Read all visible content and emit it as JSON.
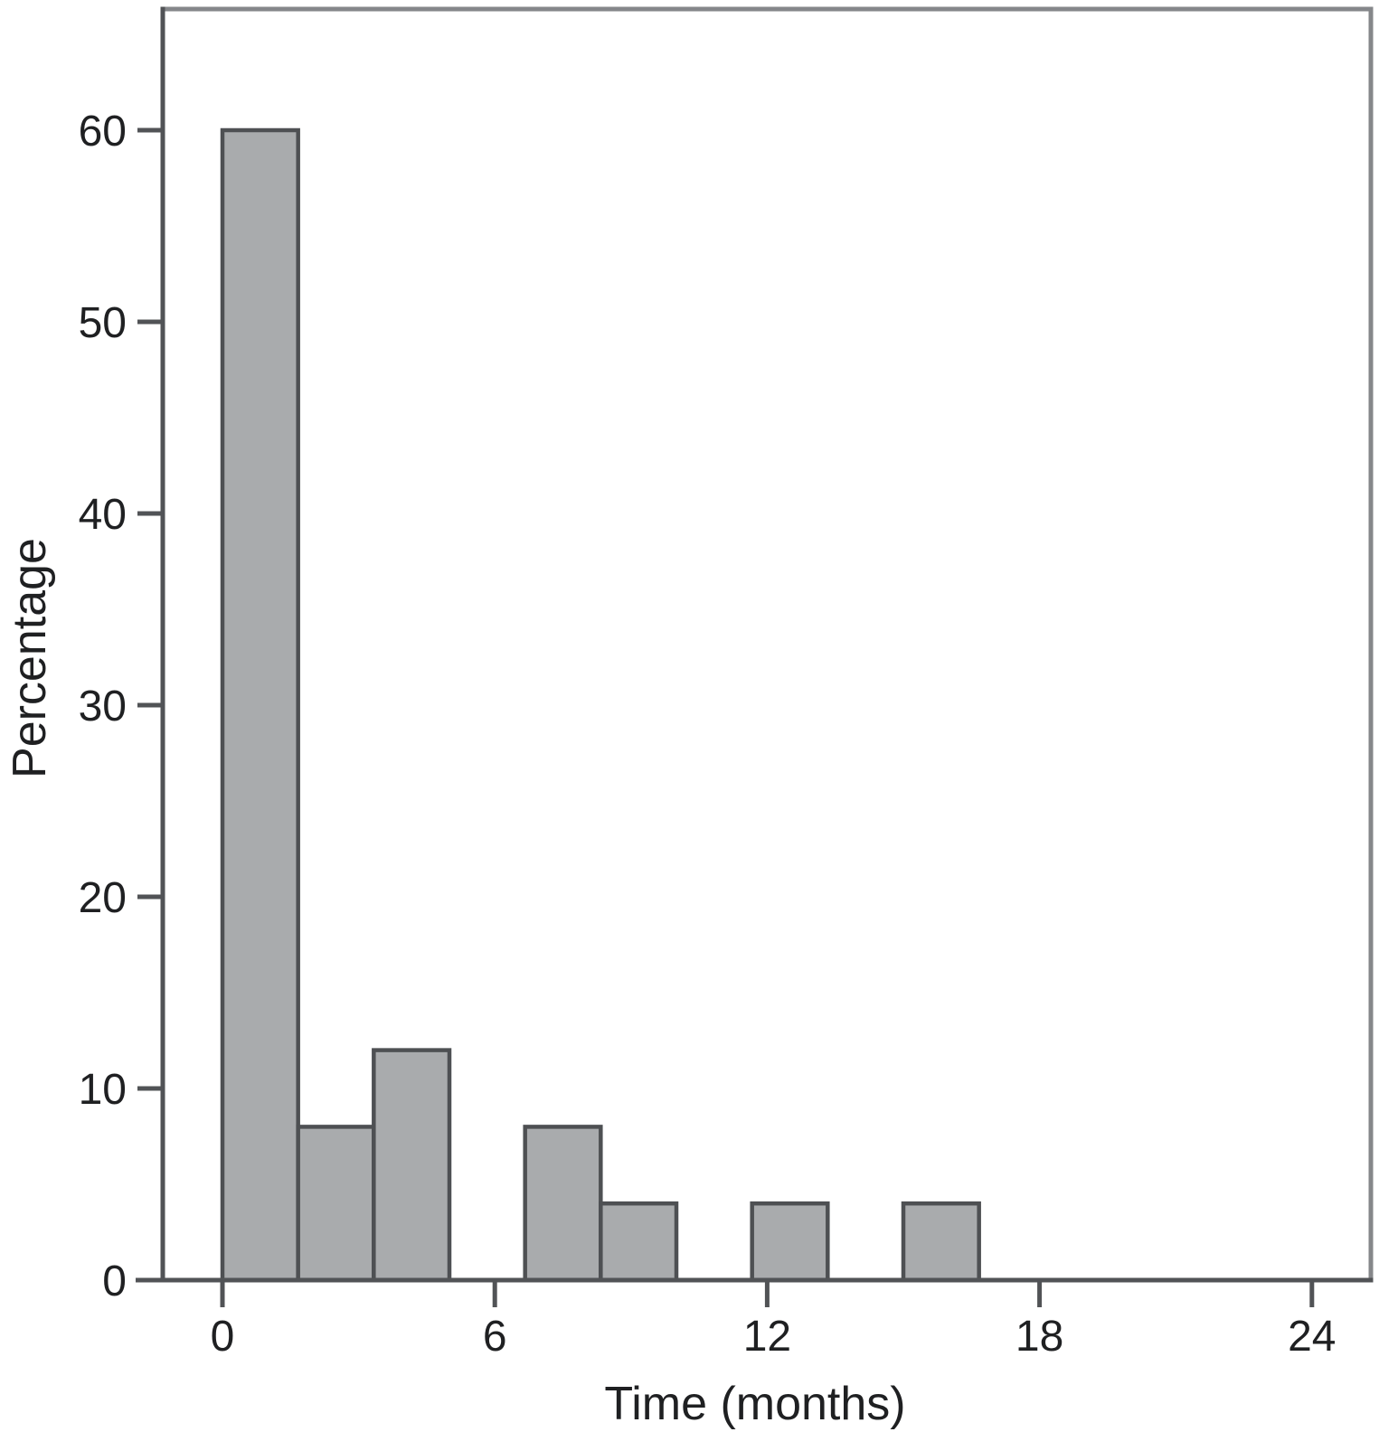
{
  "figure": {
    "background": "#ffffff"
  },
  "chart_data": {
    "type": "bar",
    "subtype": "histogram",
    "title": "",
    "xlabel": "Time (months)",
    "ylabel": "Percentage",
    "xlim": [
      -1.9,
      25.3
    ],
    "ylim": [
      0,
      66.3
    ],
    "x_ticks": [
      0,
      6,
      12,
      18,
      24
    ],
    "y_ticks": [
      0,
      10,
      20,
      30,
      40,
      50,
      60
    ],
    "bin_width_months": 1.667,
    "bars": [
      {
        "x_start": 0,
        "x_end": 1.667,
        "value": 60
      },
      {
        "x_start": 1.667,
        "x_end": 3.333,
        "value": 8
      },
      {
        "x_start": 3.333,
        "x_end": 5,
        "value": 12
      },
      {
        "x_start": 6.667,
        "x_end": 8.333,
        "value": 8
      },
      {
        "x_start": 8.333,
        "x_end": 10,
        "value": 4
      },
      {
        "x_start": 11.667,
        "x_end": 13.333,
        "value": 4
      },
      {
        "x_start": 15,
        "x_end": 16.667,
        "value": 4
      }
    ],
    "grid": false,
    "legend": null,
    "colors": {
      "bar_fill": "#a9abad",
      "bar_stroke": "#4e5053",
      "axis": "#515356",
      "frame": "#85878a",
      "text": "#1f2022"
    }
  }
}
